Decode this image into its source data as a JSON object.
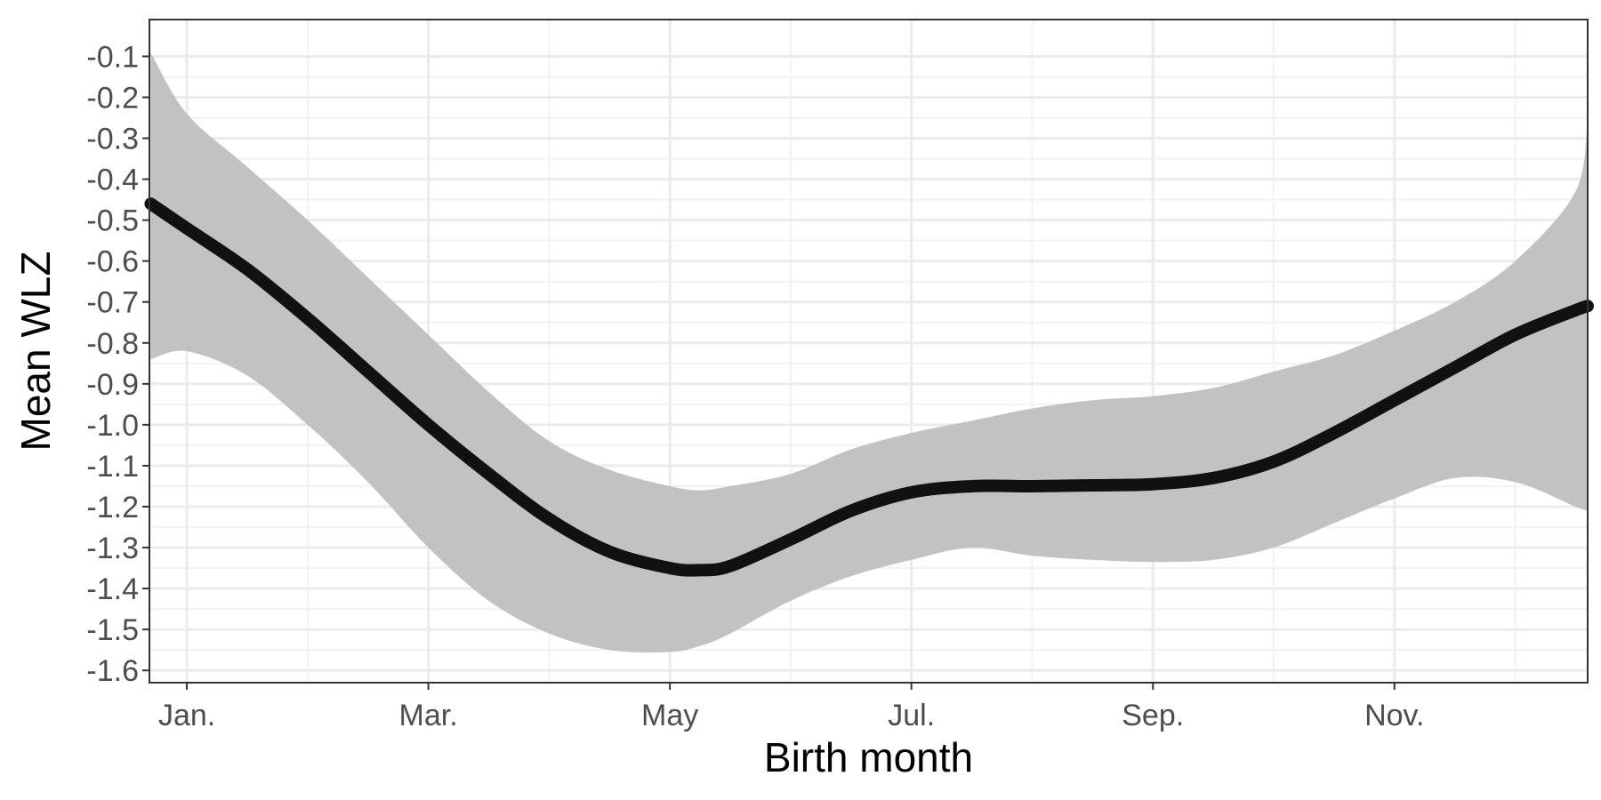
{
  "chart_data": {
    "type": "line",
    "title": "",
    "xlabel": "Birth month",
    "ylabel": "Mean WLZ",
    "x_tick_labels": [
      {
        "label": "Jan.",
        "x": 1
      },
      {
        "label": "Mar.",
        "x": 3
      },
      {
        "label": "May",
        "x": 5
      },
      {
        "label": "Jul.",
        "x": 7
      },
      {
        "label": "Sep.",
        "x": 9
      },
      {
        "label": "Nov.",
        "x": 11
      }
    ],
    "y_tick_labels": [
      "-0.1",
      "-0.2",
      "-0.3",
      "-0.4",
      "-0.5",
      "-0.6",
      "-0.7",
      "-0.8",
      "-0.9",
      "-1.0",
      "-1.1",
      "-1.2",
      "-1.3",
      "-1.4",
      "-1.5",
      "-1.6"
    ],
    "y_ticks": [
      -0.1,
      -0.2,
      -0.3,
      -0.4,
      -0.5,
      -0.6,
      -0.7,
      -0.8,
      -0.9,
      -1.0,
      -1.1,
      -1.2,
      -1.3,
      -1.4,
      -1.5,
      -1.6
    ],
    "xlim": [
      0.69,
      12.6
    ],
    "ylim": [
      -1.63,
      -0.01
    ],
    "grid": true,
    "legend": "none",
    "series": [
      {
        "x": [
          0.7,
          1.0,
          1.5,
          2.0,
          2.5,
          3.0,
          3.5,
          4.0,
          4.5,
          5.0,
          5.25,
          5.5,
          6.0,
          6.5,
          7.0,
          7.5,
          8.0,
          8.5,
          9.0,
          9.5,
          10.0,
          10.5,
          11.0,
          11.5,
          12.0,
          12.5,
          12.6
        ],
        "y": [
          -0.46,
          -0.52,
          -0.62,
          -0.74,
          -0.87,
          -1.0,
          -1.12,
          -1.23,
          -1.31,
          -1.35,
          -1.355,
          -1.345,
          -1.28,
          -1.21,
          -1.165,
          -1.15,
          -1.15,
          -1.148,
          -1.145,
          -1.13,
          -1.09,
          -1.02,
          -0.94,
          -0.86,
          -0.78,
          -0.72,
          -0.71
        ],
        "lower": [
          -0.84,
          -0.82,
          -0.88,
          -1.0,
          -1.14,
          -1.3,
          -1.43,
          -1.51,
          -1.55,
          -1.555,
          -1.54,
          -1.51,
          -1.43,
          -1.37,
          -1.33,
          -1.3,
          -1.32,
          -1.33,
          -1.335,
          -1.33,
          -1.3,
          -1.24,
          -1.18,
          -1.13,
          -1.14,
          -1.2,
          -1.21
        ],
        "upper": [
          -0.09,
          -0.24,
          -0.37,
          -0.5,
          -0.64,
          -0.78,
          -0.92,
          -1.04,
          -1.11,
          -1.15,
          -1.16,
          -1.15,
          -1.12,
          -1.06,
          -1.02,
          -0.99,
          -0.96,
          -0.94,
          -0.93,
          -0.91,
          -0.87,
          -0.83,
          -0.77,
          -0.7,
          -0.6,
          -0.43,
          -0.25
        ],
        "color": "#111111",
        "band_color": "#bdbdbd"
      }
    ]
  }
}
